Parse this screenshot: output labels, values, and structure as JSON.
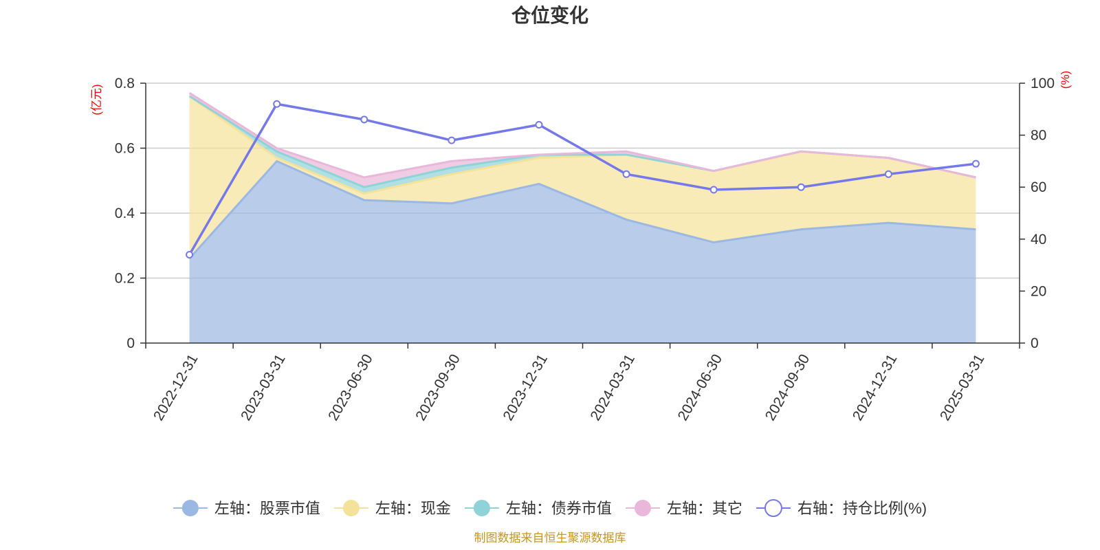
{
  "chart_data": {
    "type": "area",
    "title": "仓位变化",
    "categories": [
      "2022-12-31",
      "2023-03-31",
      "2023-06-30",
      "2023-09-30",
      "2023-12-31",
      "2024-03-31",
      "2024-06-30",
      "2024-09-30",
      "2024-12-31",
      "2025-03-31"
    ],
    "left_axis": {
      "unit": "(亿元)",
      "ylim": [
        0,
        0.8
      ],
      "ticks": [
        "0",
        "0.2",
        "0.4",
        "0.6",
        "0.8"
      ]
    },
    "right_axis": {
      "unit": "(%)",
      "ylim": [
        0,
        100
      ],
      "ticks": [
        "0",
        "20",
        "40",
        "60",
        "80",
        "100"
      ]
    },
    "series": [
      {
        "name": "左轴：股票市值",
        "axis": "left",
        "kind": "stacked-area",
        "color": "#9bb8e3",
        "values": [
          0.26,
          0.56,
          0.44,
          0.43,
          0.49,
          0.38,
          0.31,
          0.35,
          0.37,
          0.35
        ]
      },
      {
        "name": "左轴：现金",
        "axis": "left",
        "kind": "stacked-area",
        "color": "#f5e29a",
        "values": [
          0.5,
          0.01,
          0.02,
          0.09,
          0.08,
          0.2,
          0.22,
          0.24,
          0.2,
          0.16
        ]
      },
      {
        "name": "左轴：债券市值",
        "axis": "left",
        "kind": "stacked-area",
        "color": "#8fd3d8",
        "values": [
          0.0,
          0.02,
          0.02,
          0.02,
          0.01,
          0.0,
          0.0,
          0.0,
          0.0,
          0.0
        ]
      },
      {
        "name": "左轴：其它",
        "axis": "left",
        "kind": "stacked-area",
        "color": "#e8b7d9",
        "values": [
          0.01,
          0.01,
          0.03,
          0.02,
          0.0,
          0.01,
          0.0,
          0.0,
          0.0,
          0.0
        ]
      },
      {
        "name": "右轴：持仓比例(%)",
        "axis": "right",
        "kind": "line",
        "color": "#7478e9",
        "values": [
          34,
          92,
          86,
          78,
          84,
          65,
          59,
          60,
          65,
          69
        ]
      }
    ],
    "legend_position": "bottom",
    "grid": true,
    "source": "制图数据来自恒生聚源数据库"
  }
}
